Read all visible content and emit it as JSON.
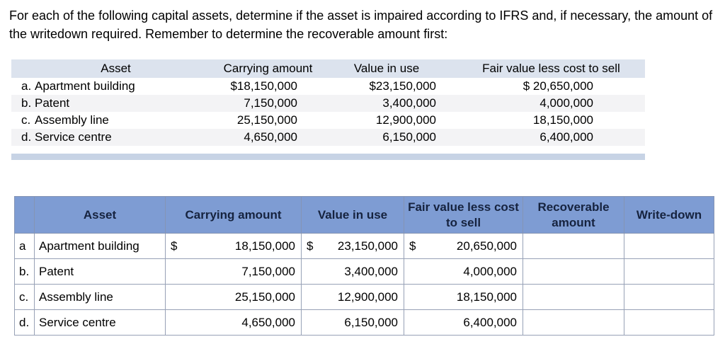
{
  "instructions": "For each of the following capital assets, determine if the asset is impaired according to IFRS and, if necessary, the amount of the writedown required. Remember to determine the recoverable amount first:",
  "colors": {
    "bottom_header_blue": "#7E9CD3",
    "input_border_yellow": "#E4E04B",
    "divider_bar": "#C7D3E5",
    "top_header_bg": "#DCE3EE"
  },
  "top_table": {
    "headers": {
      "asset": "Asset",
      "carrying": "Carrying amount",
      "value_in_use": "Value in use",
      "fair_value": "Fair value less cost to sell"
    },
    "rows": [
      {
        "letter": "a.",
        "asset": "Apartment building",
        "carrying": "$18,150,000",
        "value_in_use": "$23,150,000",
        "fair_value": "$ 20,650,000"
      },
      {
        "letter": "b.",
        "asset": "Patent",
        "carrying": "7,150,000",
        "value_in_use": "3,400,000",
        "fair_value": "4,000,000"
      },
      {
        "letter": "c.",
        "asset": "Assembly line",
        "carrying": "25,150,000",
        "value_in_use": "12,900,000",
        "fair_value": "18,150,000"
      },
      {
        "letter": "d.",
        "asset": "Service centre",
        "carrying": "4,650,000",
        "value_in_use": "6,150,000",
        "fair_value": "6,400,000"
      }
    ]
  },
  "bottom_table": {
    "headers": {
      "corner": "",
      "asset": "Asset",
      "carrying": "Carrying amount",
      "value_in_use": "Value in use",
      "fair_value": "Fair value less cost to sell",
      "recoverable": "Recoverable amount",
      "write_down": "Write-down"
    },
    "rows": [
      {
        "letter": "a",
        "asset": "Apartment building",
        "dollar": "$",
        "carrying": "18,150,000",
        "value_in_use": "23,150,000",
        "fair_value": "20,650,000",
        "recoverable": "",
        "write_down": ""
      },
      {
        "letter": "b.",
        "asset": "Patent",
        "dollar": "",
        "carrying": "7,150,000",
        "value_in_use": "3,400,000",
        "fair_value": "4,000,000",
        "recoverable": "",
        "write_down": ""
      },
      {
        "letter": "c.",
        "asset": "Assembly line",
        "dollar": "",
        "carrying": "25,150,000",
        "value_in_use": "12,900,000",
        "fair_value": "18,150,000",
        "recoverable": "",
        "write_down": ""
      },
      {
        "letter": "d.",
        "asset": "Service centre",
        "dollar": "",
        "carrying": "4,650,000",
        "value_in_use": "6,150,000",
        "fair_value": "6,400,000",
        "recoverable": "",
        "write_down": ""
      }
    ]
  }
}
